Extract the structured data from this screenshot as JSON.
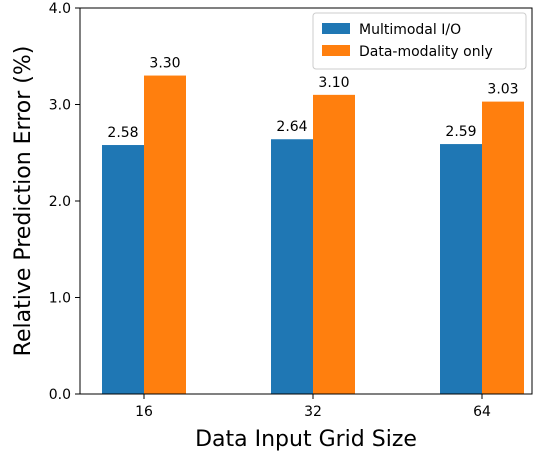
{
  "chart_data": {
    "type": "bar",
    "title": "",
    "xlabel": "Data Input Grid Size",
    "ylabel": "Relative Prediction Error (%)",
    "categories": [
      "16",
      "32",
      "64"
    ],
    "ylim": [
      0,
      4.0
    ],
    "yticks": [
      0.0,
      1.0,
      2.0,
      3.0,
      4.0
    ],
    "ytick_labels": [
      "0.0",
      "1.0",
      "2.0",
      "3.0",
      "4.0"
    ],
    "grid": false,
    "legend_position": "top-right",
    "series": [
      {
        "name": "Multimodal I/O",
        "color": "#1f77b4",
        "values": [
          2.58,
          2.64,
          2.59
        ],
        "labels": [
          "2.58",
          "2.64",
          "2.59"
        ]
      },
      {
        "name": "Data-modality only",
        "color": "#ff7f0e",
        "values": [
          3.3,
          3.1,
          3.03
        ],
        "labels": [
          "3.30",
          "3.10",
          "3.03"
        ]
      }
    ]
  }
}
